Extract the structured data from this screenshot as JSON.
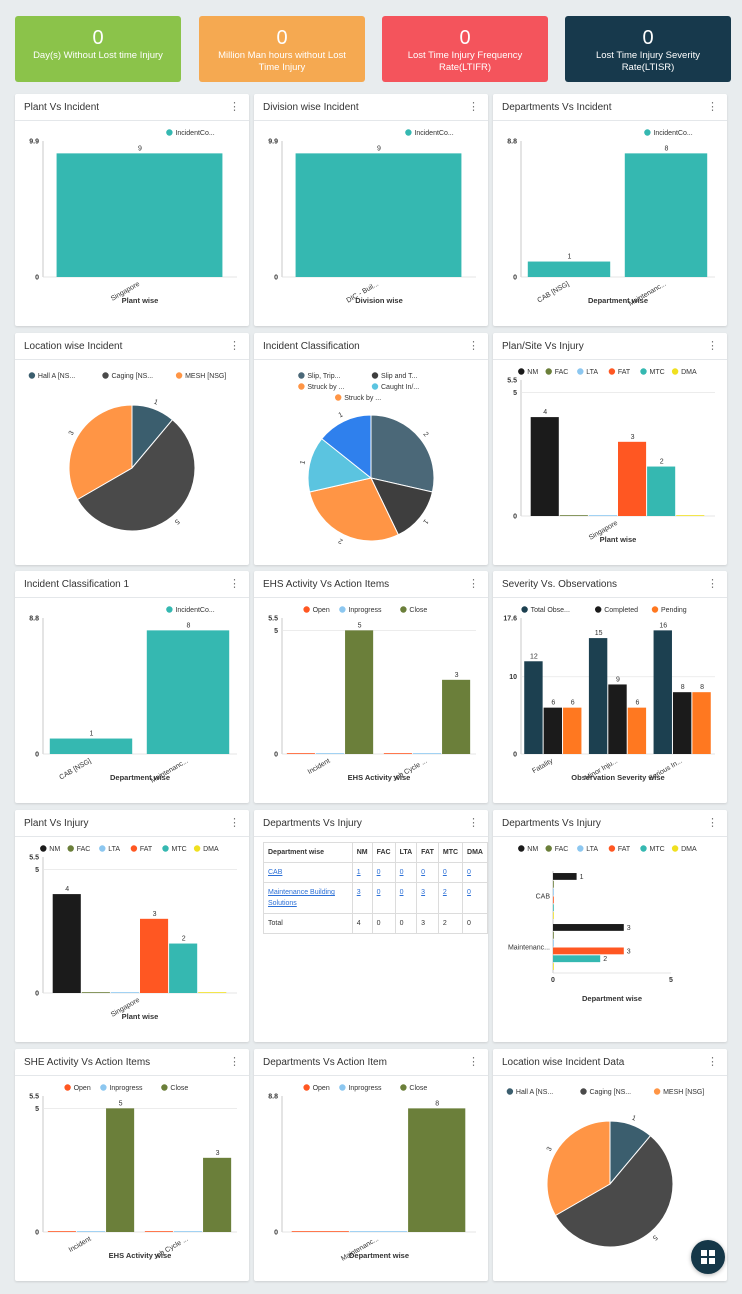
{
  "kpis": [
    {
      "value": "0",
      "label": "Day(s) Without Lost time Injury",
      "color": "#8bc34a"
    },
    {
      "value": "0",
      "label": "Million Man hours without Lost Time Injury",
      "color": "#f5a951"
    },
    {
      "value": "0",
      "label": "Lost Time Injury Frequency Rate(LTIFR)",
      "color": "#f4545c"
    },
    {
      "value": "0",
      "label": "Lost Time Injury Severity Rate(LTISR)",
      "color": "#17394c"
    }
  ],
  "colors": {
    "teal": "#35b8b1",
    "nm": "#1b1b1b",
    "fac": "#6b7f3a",
    "lta": "#8cc7f0",
    "fat": "#ff5722",
    "mtc": "#35b8b1",
    "dma": "#f0e020",
    "open": "#ff5722",
    "inprogress": "#8cc7f0",
    "close": "#6b7f3a",
    "navy": "#1c4050",
    "black": "#1b1b1b",
    "orange": "#ff7820"
  },
  "table": {
    "headers": [
      "Department wise",
      "NM",
      "FAC",
      "LTA",
      "FAT",
      "MTC",
      "DMA"
    ],
    "rows": [
      {
        "name": "CAB",
        "values": [
          "1",
          "0",
          "0",
          "0",
          "0",
          "0"
        ],
        "links": true
      },
      {
        "name": "Maintenance Building Solutions",
        "values": [
          "3",
          "0",
          "0",
          "3",
          "2",
          "0"
        ],
        "links": true
      },
      {
        "name": "Total",
        "values": [
          "4",
          "0",
          "0",
          "3",
          "2",
          "0"
        ],
        "links": false
      }
    ]
  },
  "chart_data": [
    {
      "id": "c1",
      "type": "bar",
      "title": "Plant Vs Incident",
      "legend": [
        "IncidentCo..."
      ],
      "categories": [
        "Singapore"
      ],
      "series": [
        {
          "name": "IncidentCo...",
          "values": [
            9
          ]
        }
      ],
      "ylim": [
        0,
        9.9
      ],
      "yticks": [
        "0",
        "9.9"
      ],
      "xlabel": "Plant wise"
    },
    {
      "id": "c2",
      "type": "bar",
      "title": "Division wise Incident",
      "legend": [
        "IncidentCo..."
      ],
      "categories": [
        "DIC - Buil..."
      ],
      "series": [
        {
          "name": "IncidentCo...",
          "values": [
            9
          ]
        }
      ],
      "ylim": [
        0,
        9.9
      ],
      "yticks": [
        "0",
        "9.9"
      ],
      "xlabel": "Division wise"
    },
    {
      "id": "c3",
      "type": "bar",
      "title": "Departments Vs Incident",
      "legend": [
        "IncidentCo..."
      ],
      "categories": [
        "CAB [NSG]",
        "Maintenanc..."
      ],
      "series": [
        {
          "name": "IncidentCo...",
          "values": [
            1,
            8
          ]
        }
      ],
      "ylim": [
        0,
        8.8
      ],
      "yticks": [
        "0",
        "8.8"
      ],
      "xlabel": "Department wise"
    },
    {
      "id": "c4",
      "type": "pie",
      "title": "Location wise Incident",
      "legend": [
        "Hall A [NS...",
        "Caging [NS...",
        "MESH [NSG]"
      ],
      "values": [
        1,
        5,
        3
      ]
    },
    {
      "id": "c5",
      "type": "pie",
      "title": "Incident Classification",
      "legend": [
        "Slip, Trip...",
        "Slip and T...",
        "Struck by ...",
        "Caught In/...",
        "Struck by ..."
      ],
      "values": [
        2,
        1,
        2,
        1,
        1
      ]
    },
    {
      "id": "c6",
      "type": "bar",
      "title": "Plan/Site Vs Injury",
      "legend": [
        "NM",
        "FAC",
        "LTA",
        "FAT",
        "MTC",
        "DMA"
      ],
      "categories": [
        "Singapore"
      ],
      "series": [
        {
          "name": "NM",
          "values": [
            4
          ]
        },
        {
          "name": "FAC",
          "values": [
            0
          ]
        },
        {
          "name": "LTA",
          "values": [
            0
          ]
        },
        {
          "name": "FAT",
          "values": [
            3
          ]
        },
        {
          "name": "MTC",
          "values": [
            2
          ]
        },
        {
          "name": "DMA",
          "values": [
            0
          ]
        }
      ],
      "ylim": [
        0,
        5.5
      ],
      "yticks": [
        "0",
        "5",
        "5.5"
      ],
      "xlabel": "Plant wise"
    },
    {
      "id": "c7",
      "type": "bar",
      "title": "Incident Classification 1",
      "legend": [
        "IncidentCo..."
      ],
      "categories": [
        "CAB [NSG]",
        "Maintenanc..."
      ],
      "series": [
        {
          "name": "IncidentCo...",
          "values": [
            1,
            8
          ]
        }
      ],
      "ylim": [
        0,
        8.8
      ],
      "yticks": [
        "0",
        "8.8"
      ],
      "xlabel": "Department wise"
    },
    {
      "id": "c8",
      "type": "bar",
      "title": "EHS Activity Vs Action Items",
      "legend": [
        "Open",
        "Inprogress",
        "Close"
      ],
      "categories": [
        "Incident",
        "Job Cycle ..."
      ],
      "series": [
        {
          "name": "Open",
          "values": [
            0,
            0
          ]
        },
        {
          "name": "Inprogress",
          "values": [
            0,
            0
          ]
        },
        {
          "name": "Close",
          "values": [
            5,
            3
          ]
        }
      ],
      "ylim": [
        0,
        5.5
      ],
      "yticks": [
        "0",
        "5",
        "5.5"
      ],
      "xlabel": "EHS Activity wise"
    },
    {
      "id": "c9",
      "type": "bar",
      "title": "Severity Vs. Observations",
      "legend": [
        "Total Obse...",
        "Completed",
        "Pending"
      ],
      "categories": [
        "Fatality",
        "Minor Inju...",
        "Serious In..."
      ],
      "series": [
        {
          "name": "Total Obse...",
          "values": [
            12,
            15,
            16
          ]
        },
        {
          "name": "Completed",
          "values": [
            6,
            9,
            8
          ]
        },
        {
          "name": "Pending",
          "values": [
            6,
            6,
            8
          ]
        }
      ],
      "ylim": [
        0,
        17.6
      ],
      "yticks": [
        "0",
        "10",
        "17.6"
      ],
      "xlabel": "Observation Severity wise"
    },
    {
      "id": "c10",
      "type": "bar",
      "title": "Plant Vs Injury",
      "legend": [
        "NM",
        "FAC",
        "LTA",
        "FAT",
        "MTC",
        "DMA"
      ],
      "categories": [
        "Singapore"
      ],
      "series": [
        {
          "name": "NM",
          "values": [
            4
          ]
        },
        {
          "name": "FAC",
          "values": [
            0
          ]
        },
        {
          "name": "LTA",
          "values": [
            0
          ]
        },
        {
          "name": "FAT",
          "values": [
            3
          ]
        },
        {
          "name": "MTC",
          "values": [
            2
          ]
        },
        {
          "name": "DMA",
          "values": [
            0
          ]
        }
      ],
      "ylim": [
        0,
        5.5
      ],
      "yticks": [
        "0",
        "5",
        "5.5"
      ],
      "xlabel": "Plant wise"
    },
    {
      "id": "c12",
      "type": "bar",
      "horizontal": true,
      "title": "Departments Vs Injury",
      "legend": [
        "NM",
        "FAC",
        "LTA",
        "FAT",
        "MTC",
        "DMA"
      ],
      "categories": [
        "CAB",
        "Maintenanc..."
      ],
      "series": [
        {
          "name": "NM",
          "values": [
            1,
            3
          ]
        },
        {
          "name": "FAC",
          "values": [
            0,
            0
          ]
        },
        {
          "name": "LTA",
          "values": [
            0,
            0
          ]
        },
        {
          "name": "FAT",
          "values": [
            0,
            3
          ]
        },
        {
          "name": "MTC",
          "values": [
            0,
            2
          ]
        },
        {
          "name": "DMA",
          "values": [
            0,
            0
          ]
        }
      ],
      "xlim": [
        0,
        5
      ],
      "xticks": [
        "0",
        "5"
      ],
      "xlabel": "Department wise"
    },
    {
      "id": "c13",
      "type": "bar",
      "title": "SHE Activity Vs Action Items",
      "legend": [
        "Open",
        "Inprogress",
        "Close"
      ],
      "categories": [
        "Incident",
        "Job Cycle ..."
      ],
      "series": [
        {
          "name": "Open",
          "values": [
            0,
            0
          ]
        },
        {
          "name": "Inprogress",
          "values": [
            0,
            0
          ]
        },
        {
          "name": "Close",
          "values": [
            5,
            3
          ]
        }
      ],
      "ylim": [
        0,
        5.5
      ],
      "yticks": [
        "0",
        "5",
        "5.5"
      ],
      "xlabel": "EHS Activity wise"
    },
    {
      "id": "c14",
      "type": "bar",
      "title": "Departments Vs Action Item",
      "legend": [
        "Open",
        "Inprogress",
        "Close"
      ],
      "categories": [
        "Maintenanc..."
      ],
      "series": [
        {
          "name": "Open",
          "values": [
            0
          ]
        },
        {
          "name": "Inprogress",
          "values": [
            0
          ]
        },
        {
          "name": "Close",
          "values": [
            8
          ]
        }
      ],
      "ylim": [
        0,
        8.8
      ],
      "yticks": [
        "0",
        "8.8"
      ],
      "xlabel": "Department wise"
    },
    {
      "id": "c15",
      "type": "pie",
      "title": "Location wise Incident Data",
      "legend": [
        "Hall A [NS...",
        "Caging [NS...",
        "MESH [NSG]"
      ],
      "values": [
        1,
        5,
        3
      ]
    }
  ],
  "table_card_title": "Departments Vs Injury",
  "menu_glyph": "⋮",
  "fab_icon": "dashboard-grid-icon"
}
